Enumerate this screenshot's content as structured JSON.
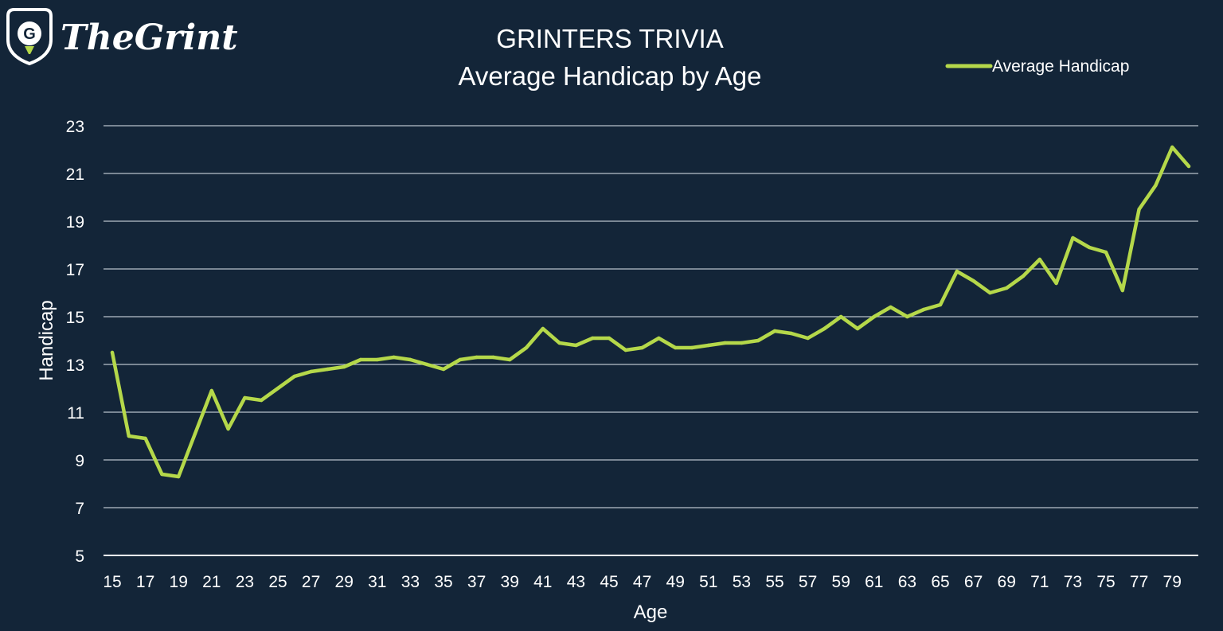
{
  "brand": {
    "logo_mark": "G",
    "name": "TheGrint"
  },
  "legend": {
    "label": "Average Handicap"
  },
  "colors": {
    "background": "#132538",
    "series_line": "#b5d84a",
    "grid": "#b8c2cc",
    "text": "#ffffff"
  },
  "chart_data": {
    "type": "line",
    "title": "GRINTERS TRIVIA",
    "subtitle": "Average Handicap by Age",
    "xlabel": "Age",
    "ylabel": "Handicap",
    "ylim": [
      5,
      23
    ],
    "yticks": [
      5,
      7,
      9,
      11,
      13,
      15,
      17,
      19,
      21,
      23
    ],
    "xticks": [
      15,
      17,
      19,
      21,
      23,
      25,
      27,
      29,
      31,
      33,
      35,
      37,
      39,
      41,
      43,
      45,
      47,
      49,
      51,
      53,
      55,
      57,
      59,
      61,
      63,
      65,
      67,
      69,
      71,
      73,
      75,
      77,
      79
    ],
    "grid": true,
    "legend_position": "top-right",
    "series": [
      {
        "name": "Average Handicap",
        "x": [
          15,
          16,
          17,
          18,
          19,
          20,
          21,
          22,
          23,
          24,
          25,
          26,
          27,
          28,
          29,
          30,
          31,
          32,
          33,
          34,
          35,
          36,
          37,
          38,
          39,
          40,
          41,
          42,
          43,
          44,
          45,
          46,
          47,
          48,
          49,
          50,
          51,
          52,
          53,
          54,
          55,
          56,
          57,
          58,
          59,
          60,
          61,
          62,
          63,
          64,
          65,
          66,
          67,
          68,
          69,
          70,
          71,
          72,
          73,
          74,
          75,
          76,
          77,
          78,
          79,
          80
        ],
        "values": [
          13.5,
          10.0,
          9.9,
          8.4,
          8.3,
          10.1,
          11.9,
          10.3,
          11.6,
          11.5,
          12.0,
          12.5,
          12.7,
          12.8,
          12.9,
          13.2,
          13.2,
          13.3,
          13.2,
          13.0,
          12.8,
          13.2,
          13.3,
          13.3,
          13.2,
          13.7,
          14.5,
          13.9,
          13.8,
          14.1,
          14.1,
          13.6,
          13.7,
          14.1,
          13.7,
          13.7,
          13.8,
          13.9,
          13.9,
          14.0,
          14.4,
          14.3,
          14.1,
          14.5,
          15.0,
          14.5,
          15.0,
          15.4,
          15.0,
          15.3,
          15.5,
          16.9,
          16.5,
          16.0,
          16.2,
          16.7,
          17.4,
          16.4,
          18.3,
          17.9,
          17.7,
          16.1,
          19.5,
          20.5,
          22.1,
          21.3
        ]
      }
    ]
  }
}
